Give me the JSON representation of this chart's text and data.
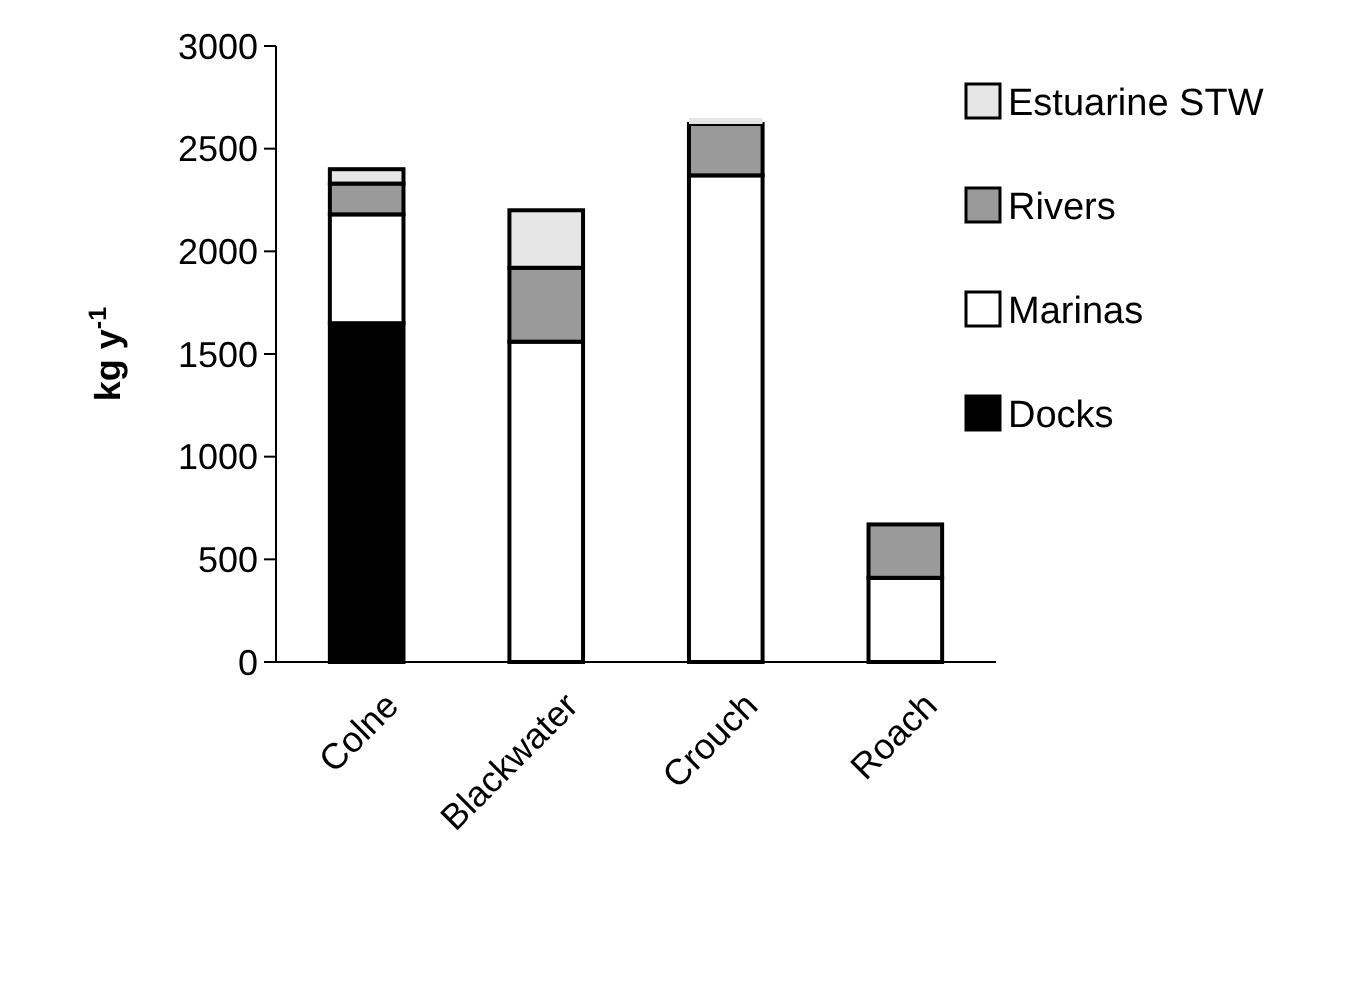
{
  "chart_data": {
    "type": "bar",
    "stacked": true,
    "ylabel": "kg y$^{-1}$",
    "categories": [
      "Colne",
      "Blackwater",
      "Crouch",
      "Roach"
    ],
    "series": [
      {
        "name": "Docks",
        "color": "#000000",
        "values": [
          1650,
          0,
          0,
          0
        ]
      },
      {
        "name": "Marinas",
        "color": "#ffffff",
        "values": [
          530,
          1560,
          2370,
          410
        ]
      },
      {
        "name": "Rivers",
        "color": "#9a9a9a",
        "values": [
          150,
          360,
          250,
          260
        ]
      },
      {
        "name": "Estuarine STW",
        "color": "#e6e6e6",
        "values": [
          70,
          280,
          30,
          0
        ]
      }
    ],
    "ylim": [
      0,
      3000
    ],
    "yticks": [
      0,
      500,
      1000,
      1500,
      2000,
      2500,
      3000
    ],
    "legend": "right",
    "grid": false
  }
}
